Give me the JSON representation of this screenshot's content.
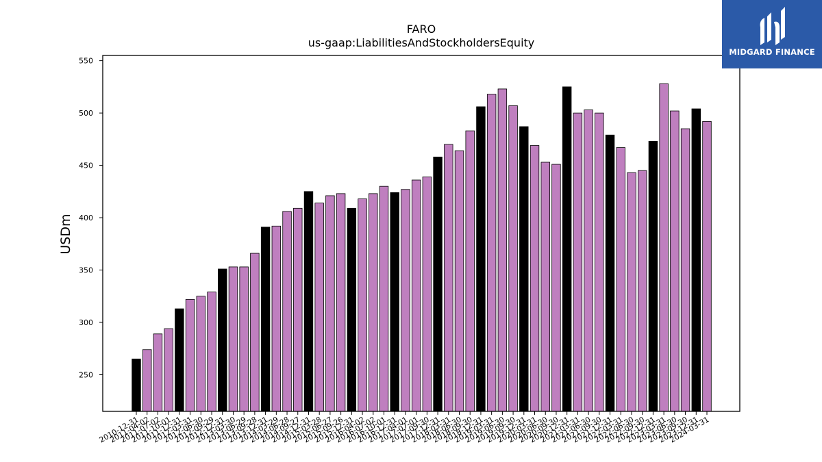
{
  "chart_data": {
    "type": "bar",
    "title": "FARO",
    "subtitle": "us-gaap:LiabilitiesAndStockholdersEquity",
    "xlabel": "",
    "ylabel": "USDm",
    "ylim": [
      215,
      555
    ],
    "yticks": [
      250,
      300,
      350,
      400,
      450,
      500,
      550
    ],
    "grid": false,
    "categories": [
      "2010-12-31",
      "2011-04-02",
      "2011-07-02",
      "2011-10-01",
      "2011-12-31",
      "2012-03-31",
      "2012-06-30",
      "2012-09-29",
      "2012-12-31",
      "2013-03-30",
      "2013-06-29",
      "2013-09-28",
      "2013-12-31",
      "2014-03-29",
      "2014-06-28",
      "2014-09-27",
      "2014-12-31",
      "2015-03-28",
      "2015-06-27",
      "2015-09-26",
      "2015-12-31",
      "2016-04-02",
      "2016-07-02",
      "2016-10-01",
      "2016-12-31",
      "2017-04-01",
      "2017-07-01",
      "2017-09-30",
      "2017-12-31",
      "2018-03-31",
      "2018-06-30",
      "2018-09-30",
      "2018-12-31",
      "2019-03-31",
      "2019-06-30",
      "2019-09-30",
      "2019-12-31",
      "2020-03-31",
      "2020-06-30",
      "2020-09-30",
      "2020-12-31",
      "2021-03-31",
      "2021-06-30",
      "2021-09-30",
      "2021-12-31",
      "2022-03-31",
      "2022-06-30",
      "2022-09-30",
      "2022-12-31",
      "2023-03-31",
      "2023-06-30",
      "2023-09-30",
      "2023-12-31",
      "2024-03-31"
    ],
    "x_tick_labels": [
      "2010-12-31",
      "2011-04-02",
      "2011-07-02",
      "2011-10-01",
      "2011-12-31",
      "2012-03-31",
      "2012-06-30",
      "2012-09-29",
      "2012-12-31",
      "2013-03-30",
      "2013-06-29",
      "2013-09-28",
      "2013-12-31",
      "2014-03-29",
      "2014-06-28",
      "2014-09-27",
      "2014-12-31",
      "2015-03-28",
      "2015-06-27",
      "2015-09-26",
      "2015-12-31",
      "2016-04-02",
      "2016-07-02",
      "2016-10-01",
      "2016-12-31",
      "2017-04-01",
      "2017-07-01",
      "2017-09-30",
      "2017-12-31",
      "2018-03-31",
      "2018-06-30",
      "2018-09-30",
      "2018-12-31",
      "2019-03-31",
      "2019-06-30",
      "2019-09-30",
      "2019-12-31",
      "2020-03-31",
      "2020-06-30",
      "2020-09-30",
      "2020-12-31",
      "2021-03-31",
      "2021-06-30",
      "2021-09-30",
      "2021-12-31",
      "2022-03-31",
      "2022-06-30",
      "2022-09-30",
      "2022-12-31",
      "2023-03-31",
      "2023-06-30",
      "2023-09-30",
      "2023-12-31",
      "2024-03-31"
    ],
    "values": [
      265,
      274,
      289,
      294,
      313,
      322,
      325,
      329,
      351,
      353,
      353,
      366,
      391,
      392,
      406,
      409,
      425,
      414,
      421,
      423,
      409,
      418,
      423,
      430,
      424,
      427,
      436,
      439,
      458,
      470,
      464,
      483,
      506,
      518,
      523,
      507,
      487,
      469,
      453,
      451,
      525,
      500,
      503,
      500,
      479,
      467,
      443,
      445,
      473,
      528,
      502,
      485,
      504,
      492
    ],
    "year_end": [
      true,
      false,
      false,
      false,
      true,
      false,
      false,
      false,
      true,
      false,
      false,
      false,
      true,
      false,
      false,
      false,
      true,
      false,
      false,
      false,
      true,
      false,
      false,
      false,
      true,
      false,
      false,
      false,
      true,
      false,
      false,
      false,
      true,
      false,
      false,
      false,
      true,
      false,
      false,
      false,
      true,
      false,
      false,
      false,
      true,
      false,
      false,
      false,
      true,
      false,
      false,
      false,
      true,
      false
    ],
    "colors": {
      "year_end": "#000000",
      "quarter": "#bf7fbf",
      "edge": "#000000"
    }
  },
  "logo": {
    "text": "MIDGARD FINANCE",
    "background": "#2b5aa8"
  }
}
